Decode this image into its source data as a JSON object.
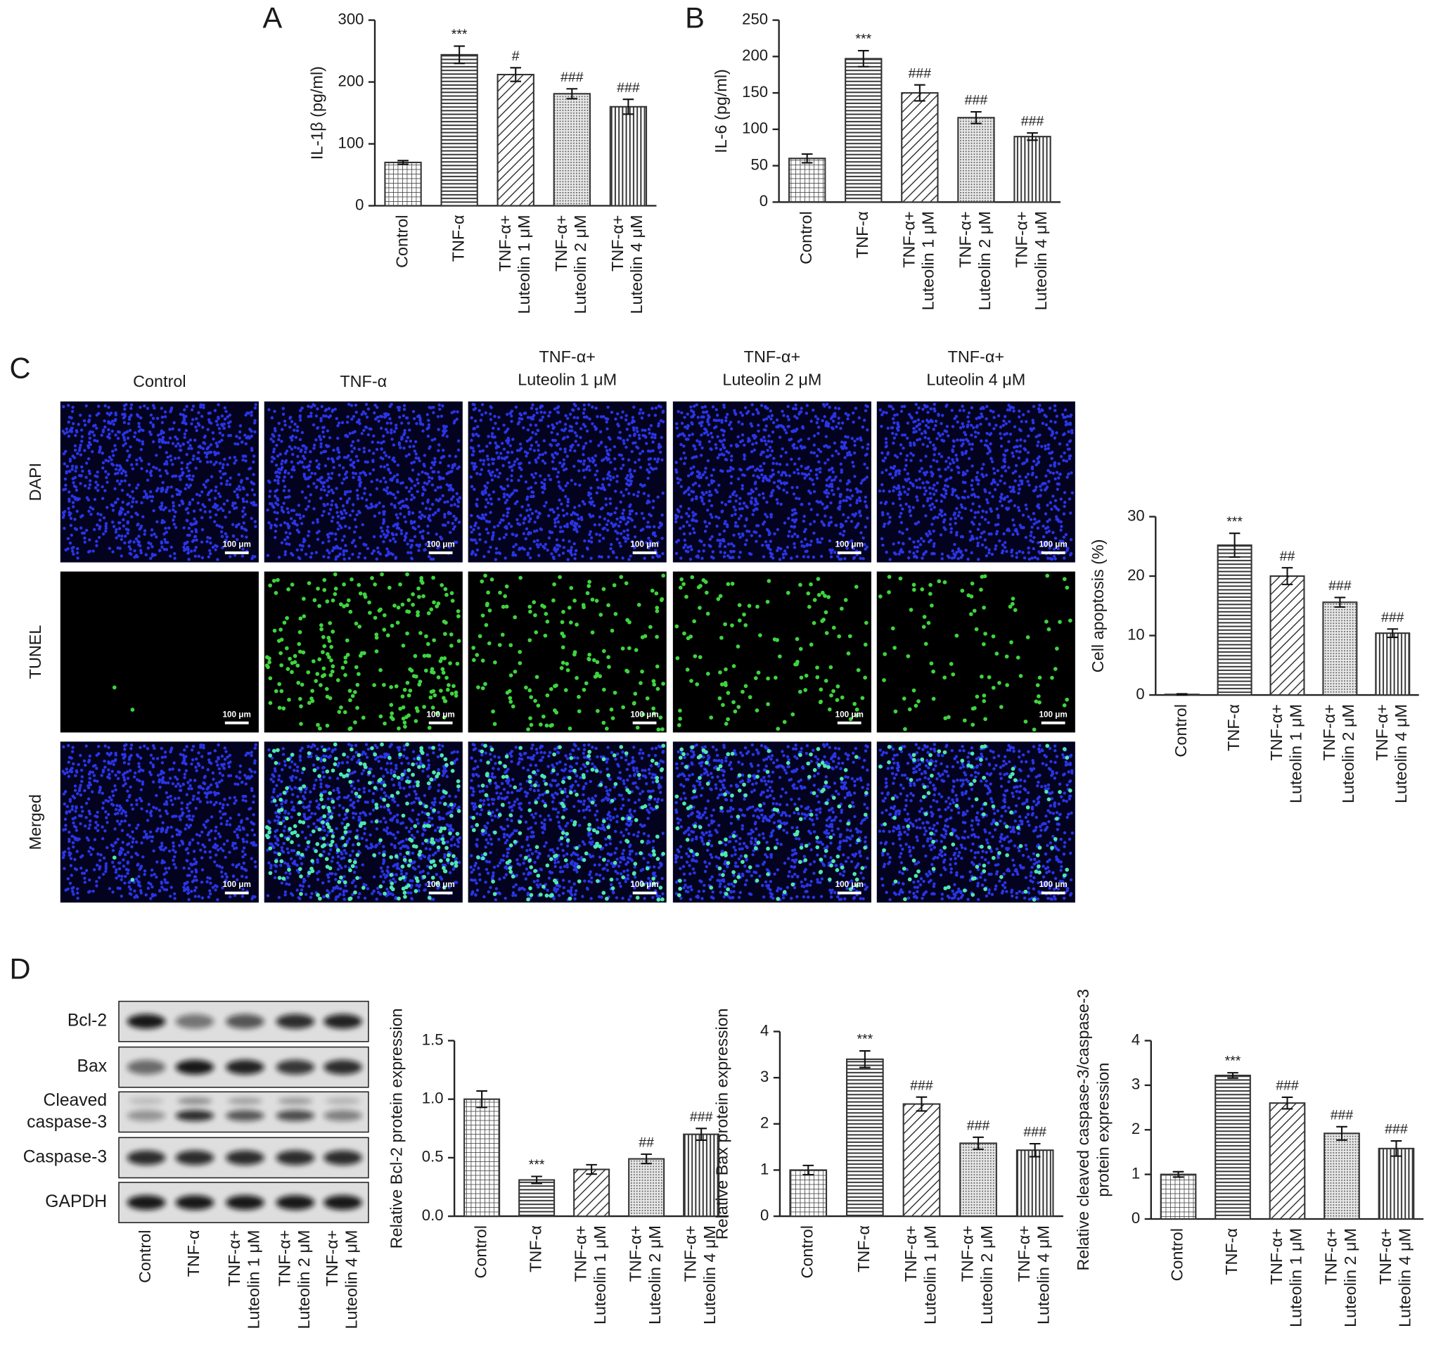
{
  "panel_labels": [
    "A",
    "B",
    "C",
    "D"
  ],
  "chart_data": [
    {
      "type": "bar",
      "y_label": "IL-1β (pg/ml)",
      "categories": [
        [
          "Control"
        ],
        [
          "TNF-α"
        ],
        [
          "TNF-α+",
          "Luteolin 1 μM"
        ],
        [
          "TNF-α+",
          "Luteolin 2 μM"
        ],
        [
          "TNF-α+",
          "Luteolin 4 μM"
        ]
      ],
      "values": [
        70,
        244,
        212,
        181,
        160
      ],
      "errors": [
        3,
        14,
        11,
        8,
        12
      ],
      "annotations": [
        null,
        "***",
        "#",
        "###",
        "###"
      ],
      "ylim": [
        0,
        300
      ],
      "yticks": [
        0,
        100,
        200,
        300
      ],
      "color": "#333333",
      "patterns": [
        "grid",
        "horizontal",
        "diagonal",
        "dots",
        "vertical"
      ]
    },
    {
      "type": "bar",
      "y_label": "IL-6 (pg/ml)",
      "categories": [
        [
          "Control"
        ],
        [
          "TNF-α"
        ],
        [
          "TNF-α+",
          "Luteolin 1 μM"
        ],
        [
          "TNF-α+",
          "Luteolin 2 μM"
        ],
        [
          "TNF-α+",
          "Luteolin 4 μM"
        ]
      ],
      "values": [
        60,
        197,
        150,
        116,
        90
      ],
      "errors": [
        6,
        11,
        11,
        8,
        5
      ],
      "annotations": [
        null,
        "***",
        "###",
        "###",
        "###"
      ],
      "ylim": [
        0,
        250
      ],
      "yticks": [
        0,
        50,
        100,
        150,
        200,
        250
      ],
      "color": "#333333",
      "patterns": [
        "grid",
        "horizontal",
        "diagonal",
        "dots",
        "vertical"
      ]
    },
    {
      "type": "bar",
      "y_label": "Cell apoptosis (%)",
      "categories": [
        [
          "Control"
        ],
        [
          "TNF-α"
        ],
        [
          "TNF-α+",
          "Luteolin 1 μM"
        ],
        [
          "TNF-α+",
          "Luteolin 2 μM"
        ],
        [
          "TNF-α+",
          "Luteolin 4 μM"
        ]
      ],
      "values": [
        0.1,
        25.2,
        20,
        15.6,
        10.4
      ],
      "errors": [
        0.1,
        2,
        1.4,
        0.8,
        0.7
      ],
      "annotations": [
        null,
        "***",
        "##",
        "###",
        "###"
      ],
      "ylim": [
        0,
        30
      ],
      "yticks": [
        0,
        10,
        20,
        30
      ],
      "color": "#333333",
      "patterns": [
        "grid",
        "horizontal",
        "diagonal",
        "dots",
        "vertical"
      ]
    },
    {
      "type": "bar",
      "y_label": "Relative Bcl-2 protein expression",
      "categories": [
        [
          "Control"
        ],
        [
          "TNF-α"
        ],
        [
          "TNF-α+",
          "Luteolin 1 μM"
        ],
        [
          "TNF-α+",
          "Luteolin 2 μM"
        ],
        [
          "TNF-α+",
          "Luteolin 4 μM"
        ]
      ],
      "values": [
        1.0,
        0.31,
        0.4,
        0.49,
        0.7
      ],
      "errors": [
        0.07,
        0.03,
        0.04,
        0.04,
        0.05
      ],
      "annotations": [
        null,
        "***",
        null,
        "##",
        "###"
      ],
      "ylim": [
        0,
        1.5
      ],
      "yticks": [
        {
          "value": 0,
          "label": "0.0"
        },
        0.5,
        {
          "value": 1,
          "label": "1.0"
        },
        1.5
      ],
      "color": "#333333",
      "patterns": [
        "grid",
        "horizontal",
        "diagonal",
        "dots",
        "vertical"
      ]
    },
    {
      "type": "bar",
      "y_label": "Relative Bax protein expression",
      "categories": [
        [
          "Control"
        ],
        [
          "TNF-α"
        ],
        [
          "TNF-α+",
          "Luteolin 1 μM"
        ],
        [
          "TNF-α+",
          "Luteolin 2 μM"
        ],
        [
          "TNF-α+",
          "Luteolin 4 μM"
        ]
      ],
      "values": [
        1.0,
        3.4,
        2.43,
        1.58,
        1.43
      ],
      "errors": [
        0.1,
        0.18,
        0.15,
        0.13,
        0.14
      ],
      "annotations": [
        null,
        "***",
        "###",
        "###",
        "###"
      ],
      "ylim": [
        0,
        4
      ],
      "yticks": [
        0,
        1,
        2,
        3,
        4
      ],
      "color": "#333333",
      "patterns": [
        "grid",
        "horizontal",
        "diagonal",
        "dots",
        "vertical"
      ]
    },
    {
      "type": "bar",
      "y_label": [
        "Relative cleaved caspase-3/caspase-3",
        "protein expression"
      ],
      "categories": [
        [
          "Control"
        ],
        [
          "TNF-α"
        ],
        [
          "TNF-α+",
          "Luteolin 1 μM"
        ],
        [
          "TNF-α+",
          "Luteolin 2 μM"
        ],
        [
          "TNF-α+",
          "Luteolin 4 μM"
        ]
      ],
      "values": [
        1.0,
        3.22,
        2.6,
        1.92,
        1.58
      ],
      "errors": [
        0.06,
        0.06,
        0.13,
        0.15,
        0.17
      ],
      "annotations": [
        null,
        "***",
        "###",
        "###",
        "###"
      ],
      "ylim": [
        0,
        4
      ],
      "yticks": [
        0,
        1,
        2,
        3,
        4
      ],
      "color": "#333333",
      "patterns": [
        "grid",
        "horizontal",
        "diagonal",
        "dots",
        "vertical"
      ]
    }
  ],
  "microscopy": {
    "columns": [
      [
        "Control"
      ],
      [
        "TNF-α"
      ],
      [
        "TNF-α+",
        "Luteolin 1 μM"
      ],
      [
        "TNF-α+",
        "Luteolin 2 μM"
      ],
      [
        "TNF-α+",
        "Luteolin 4 μM"
      ]
    ],
    "rows": [
      "DAPI",
      "TUNEL",
      "Merged"
    ],
    "scale_bar": "100 μm"
  },
  "western_blot": {
    "bands": [
      [
        "Bcl-2"
      ],
      [
        "Bax"
      ],
      [
        "Cleaved",
        "caspase-3"
      ],
      [
        "Caspase-3"
      ],
      [
        "GAPDH"
      ]
    ],
    "lanes": [
      [
        "Control"
      ],
      [
        "TNF-α"
      ],
      [
        "TNF-α+",
        "Luteolin 1 μM"
      ],
      [
        "TNF-α+",
        "Luteolin 2 μM"
      ],
      [
        "TNF-α+",
        "Luteolin 4 μM"
      ]
    ]
  }
}
